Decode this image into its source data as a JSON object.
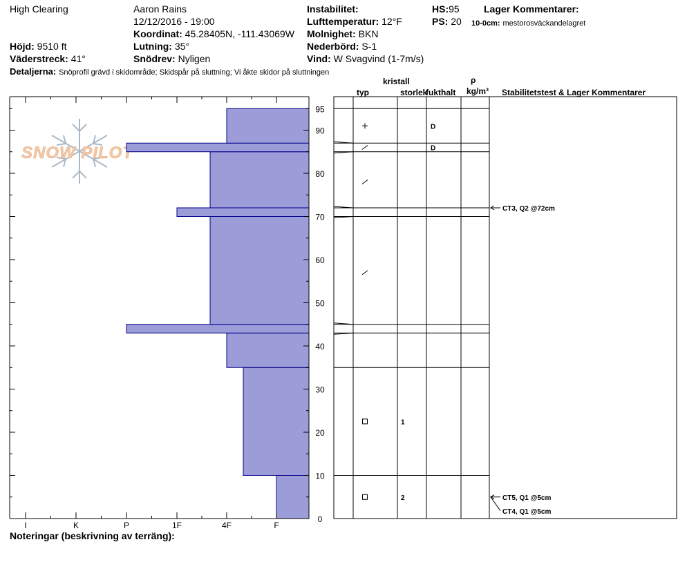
{
  "header": {
    "location": "High Clearing",
    "observer": "Aaron Rains",
    "datetime": "12/12/2016 - 19:00",
    "coordinates_label": "Koordinat:",
    "coordinates_value": "45.28405N, -111.43069W",
    "elevation_label": "Höjd:",
    "elevation_value": "9510 ft",
    "aspect_label": "Väderstreck:",
    "aspect_value": "41°",
    "slope_label": "Lutning:",
    "slope_value": "35°",
    "wind_loading_label": "Snödrev:",
    "wind_loading_value": "Nyligen",
    "details_label": "Detaljerna:",
    "details_value": "Snöprofil grävd i skidområde;  Skidspår på sluttning;  Vi åkte skidor på sluttningen",
    "instability_label": "Instabilitet:",
    "air_temp_label": "Lufttemperatur:",
    "air_temp_value": "12°F",
    "sky_label": "Molnighet:",
    "sky_value": "BKN",
    "precip_label": "Nederbörd:",
    "precip_value": "S-1",
    "wind_label": "Vind:",
    "wind_value": "W Svagvind (1-7m/s)",
    "hs_label": "HS:",
    "hs_value": "95",
    "ps_label": "PS:",
    "ps_value": "20",
    "layer_comments_label": "Lager Kommentarer:",
    "layer_comment_depth": "10-0cm:",
    "layer_comment_text": "mestorosväckandelagret"
  },
  "columns": {
    "crystal": "kristall",
    "type": "typ",
    "size": "storlek",
    "moisture": "fukthalt",
    "rho": "ρ",
    "density_unit": "kg/m³",
    "stability": "Stabilitetstest & Lager Kommentarer"
  },
  "watermark": "SNOW PILOT",
  "notes_label": "Noteringar (beskrivning av terräng):",
  "colors": {
    "hardness_fill": "#9c9cd8",
    "hardness_stroke": "#00008b",
    "watermark": "#f2c8a8",
    "snowflake": "#aab8c6"
  },
  "chart_data": {
    "type": "bar",
    "orientation": "horizontal",
    "y_axis": {
      "range": [
        0,
        95
      ],
      "tick_labels": [
        "0",
        "10",
        "20",
        "30",
        "40",
        "50",
        "60",
        "70",
        "80",
        "90",
        "95"
      ]
    },
    "x_axis": {
      "tick_labels": [
        "I",
        "K",
        "P",
        "1F",
        "4F",
        "F"
      ],
      "reversed": true
    },
    "hardness_layers": [
      {
        "bottom": 0,
        "top": 10,
        "hardness": "F"
      },
      {
        "bottom": 10,
        "top": 35,
        "hardness": "4F-"
      },
      {
        "bottom": 35,
        "top": 43,
        "hardness": "4F"
      },
      {
        "bottom": 43,
        "top": 45,
        "hardness": "P"
      },
      {
        "bottom": 45,
        "top": 70,
        "hardness": "1F-"
      },
      {
        "bottom": 70,
        "top": 72,
        "hardness": "1F"
      },
      {
        "bottom": 72,
        "top": 85,
        "hardness": "1F-"
      },
      {
        "bottom": 85,
        "top": 87,
        "hardness": "P"
      },
      {
        "bottom": 87,
        "top": 95,
        "hardness": "4F"
      }
    ],
    "layer_boundaries_cm": [
      95,
      87,
      85,
      72,
      70,
      45,
      43,
      35,
      10,
      0
    ],
    "crystal_rows": [
      {
        "depth_cm": 91,
        "type": "plus",
        "size": "",
        "moisture": "D"
      },
      {
        "depth_cm": 86,
        "type": "slash",
        "size": "",
        "moisture": "D"
      },
      {
        "depth_cm": 78,
        "type": "slash",
        "size": "",
        "moisture": ""
      },
      {
        "depth_cm": 57,
        "type": "slash",
        "size": "",
        "moisture": ""
      },
      {
        "depth_cm": 22.5,
        "type": "square",
        "size": "1",
        "moisture": ""
      },
      {
        "depth_cm": 5,
        "type": "square",
        "size": "2",
        "moisture": ""
      }
    ],
    "stability_tests": [
      {
        "depth_cm": 72,
        "label": "CT3, Q2 @72cm"
      },
      {
        "depth_cm": 5,
        "label": "CT5, Q1 @5cm"
      },
      {
        "depth_cm": 5,
        "label": "CT4, Q1 @5cm"
      }
    ]
  }
}
